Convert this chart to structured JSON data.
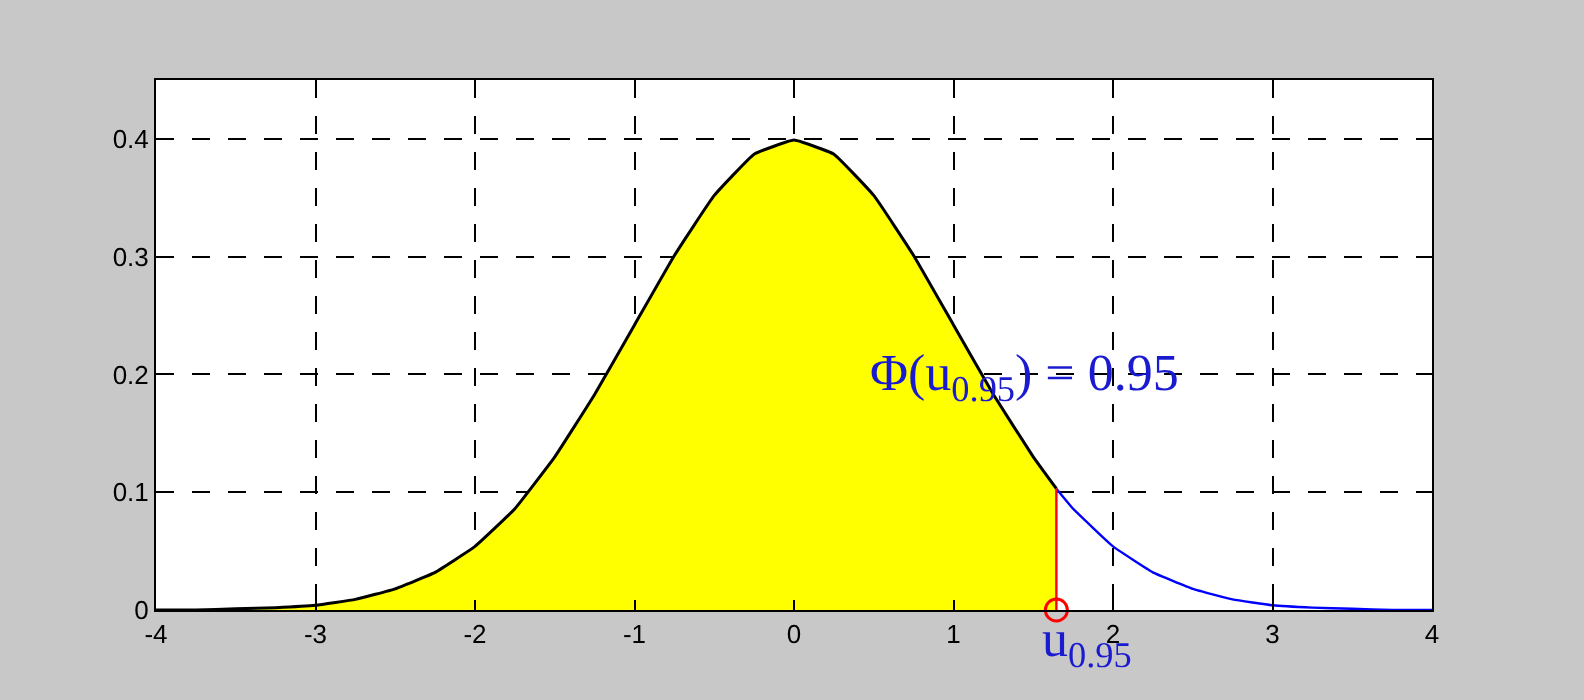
{
  "chart_data": {
    "type": "area",
    "xlim": [
      -4,
      4
    ],
    "ylim": [
      0,
      0.45
    ],
    "xticks": [
      -4,
      -3,
      -2,
      -1,
      0,
      1,
      2,
      3,
      4
    ],
    "yticks": [
      0,
      0.1,
      0.2,
      0.3,
      0.4
    ],
    "grid": true,
    "series": [
      {
        "color": "#ffff00",
        "x": [
          -4,
          -3.75,
          -3.5,
          -3.25,
          -3,
          -2.75,
          -2.5,
          -2.25,
          -2,
          -1.75,
          -1.5,
          -1.25,
          -1,
          -0.75,
          -0.5,
          -0.25,
          0,
          0.25,
          0.5,
          0.75,
          1,
          1.25,
          1.5,
          1.645
        ],
        "values": [
          0,
          0,
          0.001,
          0.002,
          0.004,
          0.009,
          0.018,
          0.032,
          0.054,
          0.086,
          0.13,
          0.183,
          0.242,
          0.301,
          0.352,
          0.387,
          0.399,
          0.387,
          0.352,
          0.301,
          0.242,
          0.183,
          0.13,
          0.103
        ]
      },
      {
        "type": "line",
        "color": "#0000ff",
        "x": [
          1.645,
          1.75,
          2,
          2.25,
          2.5,
          2.75,
          3,
          3.25,
          3.5,
          3.75,
          4
        ],
        "values": [
          0.103,
          0.086,
          0.054,
          0.032,
          0.018,
          0.009,
          0.004,
          0.002,
          0.001,
          0,
          0
        ]
      },
      {
        "type": "line",
        "color": "#ff0000",
        "x": [
          1.645,
          1.645
        ],
        "values": [
          0,
          0.103
        ]
      },
      {
        "type": "scatter",
        "color": "#ff0000",
        "marker": "circle",
        "x": [
          1.645
        ],
        "values": [
          0
        ]
      }
    ],
    "annotations": [
      "Φ(u$_{0.95}$) = 0.95",
      {
        "text": "u$_{0.95}$",
        "x": 1.645,
        "y": 0
      }
    ]
  }
}
